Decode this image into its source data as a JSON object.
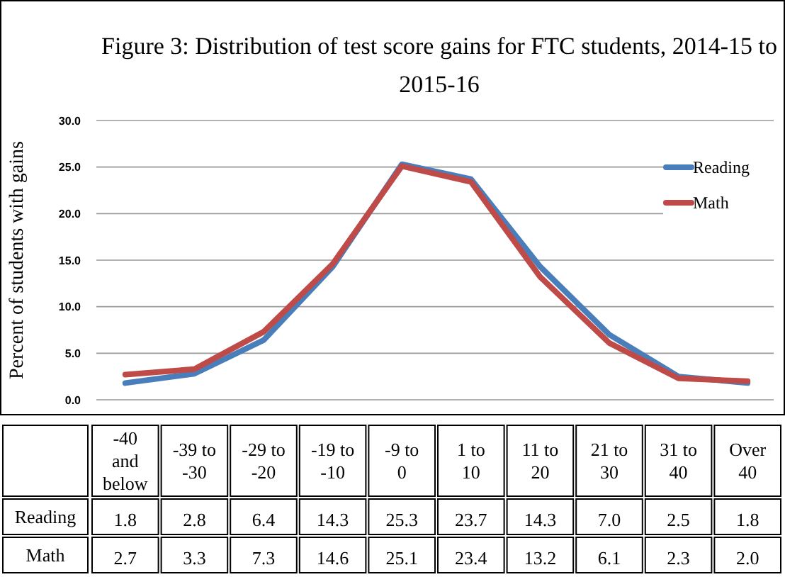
{
  "chart_data": {
    "type": "line",
    "title": "Figure 3: Distribution of test score gains for FTC students, 2014-15 to 2015-16",
    "ylabel": "Percent of students with gains",
    "categories": [
      "-40 and below",
      "-39 to -30",
      "-29 to -20",
      "-19 to -10",
      "-9 to 0",
      "1 to 10",
      "11 to 20",
      "21 to 30",
      "31 to 40",
      "Over 40"
    ],
    "series": [
      {
        "name": "Reading",
        "color": "#4a7ebb",
        "values": [
          1.8,
          2.8,
          6.4,
          14.3,
          25.3,
          23.7,
          14.3,
          7.0,
          2.5,
          1.8
        ],
        "value_labels": [
          "1.8",
          "2.8",
          "6.4",
          "14.3",
          "25.3",
          "23.7",
          "14.3",
          "7.0",
          "2.5",
          "1.8"
        ]
      },
      {
        "name": "Math",
        "color": "#be4b48",
        "values": [
          2.7,
          3.3,
          7.3,
          14.6,
          25.1,
          23.4,
          13.2,
          6.1,
          2.3,
          2.0
        ],
        "value_labels": [
          "2.7",
          "3.3",
          "7.3",
          "14.6",
          "25.1",
          "23.4",
          "13.2",
          "6.1",
          "2.3",
          "2.0"
        ]
      }
    ],
    "ylim": [
      0,
      30
    ],
    "yticks": [
      {
        "value": 0,
        "label": "0.0"
      },
      {
        "value": 5,
        "label": "5.0"
      },
      {
        "value": 10,
        "label": "10.0"
      },
      {
        "value": 15,
        "label": "15.0"
      },
      {
        "value": 20,
        "label": "20.0"
      },
      {
        "value": 25,
        "label": "25.0"
      },
      {
        "value": 30,
        "label": "30.0"
      }
    ],
    "grid": "y",
    "legend": "right",
    "marker": "none",
    "line_style": "solid"
  }
}
